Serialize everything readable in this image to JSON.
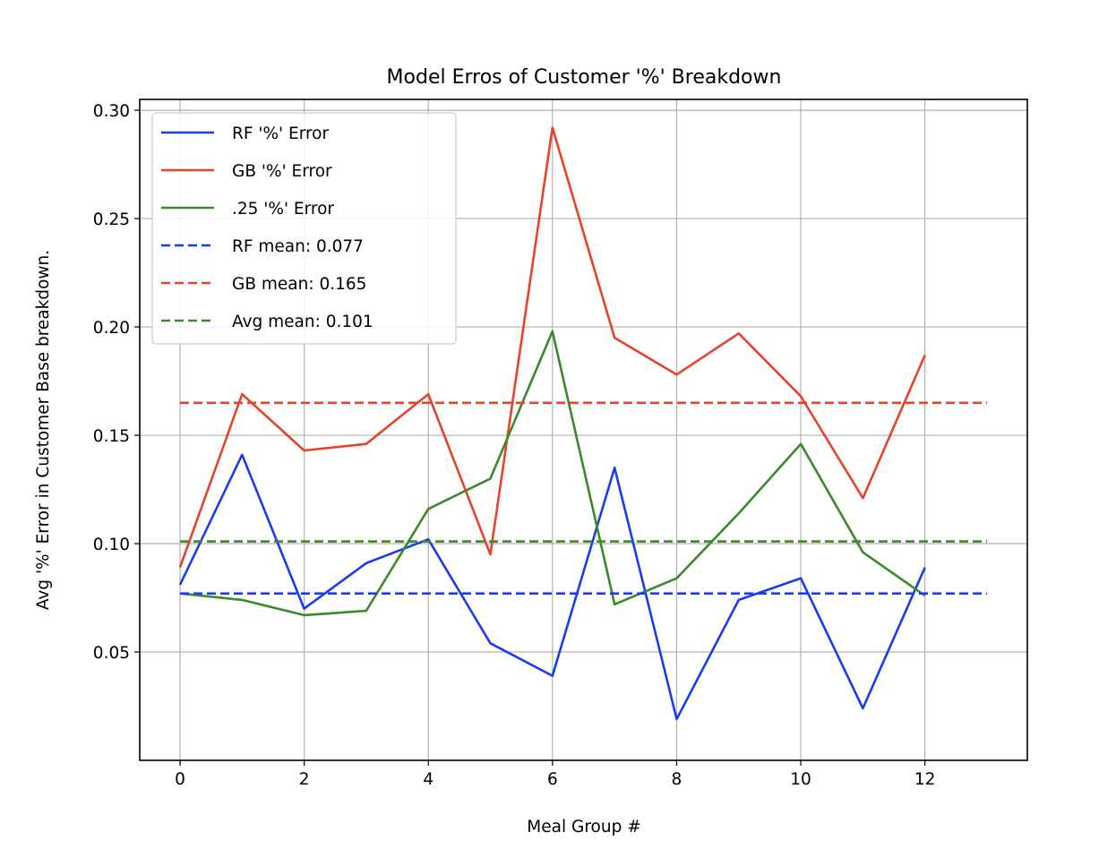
{
  "chart_data": {
    "type": "line",
    "title": "Model Erros of Customer '%' Breakdown",
    "xlabel": "Meal Group #",
    "ylabel": "Avg '%' Error in Customer Base breakdown.",
    "xlim": [
      -0.65,
      13.65
    ],
    "ylim": [
      0.0,
      0.305
    ],
    "xticks": [
      0,
      2,
      4,
      6,
      8,
      10,
      12
    ],
    "yticks": [
      0.05,
      0.1,
      0.15,
      0.2,
      0.25,
      0.3
    ],
    "ytick_labels": [
      "0.05",
      "0.10",
      "0.15",
      "0.20",
      "0.25",
      "0.30"
    ],
    "grid": true,
    "legend_position": "top-left",
    "x": [
      0,
      1,
      2,
      3,
      4,
      5,
      6,
      7,
      8,
      9,
      10,
      11,
      12
    ],
    "series": [
      {
        "name": "RF '%' Error",
        "color": "#1a3cf0",
        "style": "solid",
        "values": [
          0.081,
          0.141,
          0.07,
          0.091,
          0.102,
          0.054,
          0.039,
          0.135,
          0.019,
          0.074,
          0.084,
          0.024,
          0.089
        ]
      },
      {
        "name": "GB '%' Error",
        "color": "#e8432a",
        "style": "solid",
        "values": [
          0.089,
          0.169,
          0.143,
          0.146,
          0.169,
          0.095,
          0.292,
          0.195,
          0.178,
          0.197,
          0.168,
          0.121,
          0.187
        ]
      },
      {
        "name": ".25 '%' Error",
        "color": "#3a8a2a",
        "style": "solid",
        "values": [
          0.077,
          0.074,
          0.067,
          0.069,
          0.116,
          0.13,
          0.198,
          0.072,
          0.084,
          0.114,
          0.146,
          0.096,
          0.076
        ]
      },
      {
        "name": "RF mean: 0.077",
        "color": "#1a3cf0",
        "style": "dashed",
        "x_range": [
          0,
          13
        ],
        "value": 0.077
      },
      {
        "name": "GB mean: 0.165",
        "color": "#e8432a",
        "style": "dashed",
        "x_range": [
          0,
          13
        ],
        "value": 0.165
      },
      {
        "name": "Avg mean: 0.101",
        "color": "#3a8a2a",
        "style": "dashed",
        "x_range": [
          0,
          13
        ],
        "value": 0.101
      }
    ]
  }
}
